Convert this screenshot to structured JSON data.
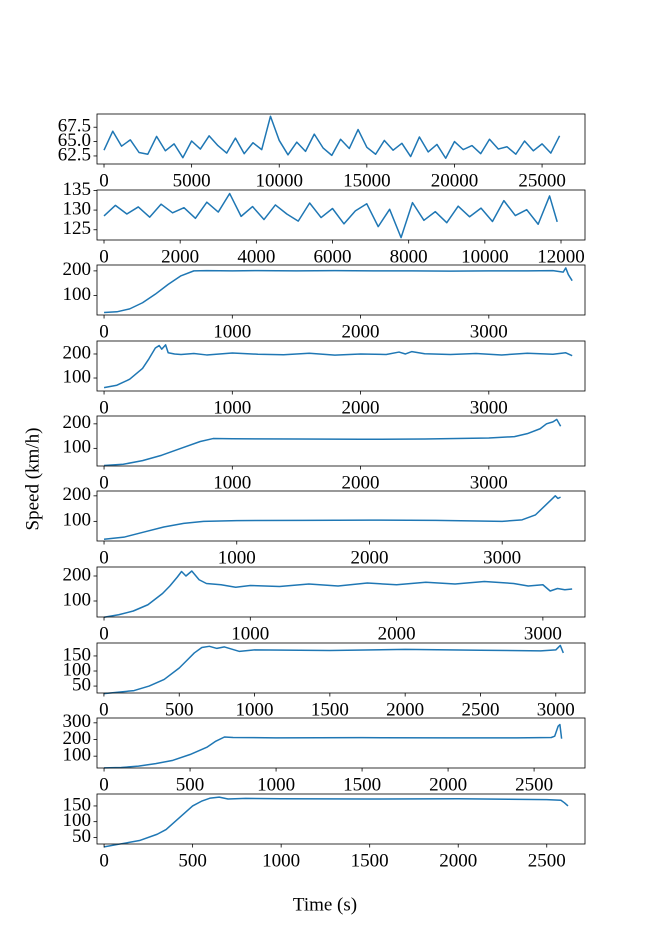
{
  "chart_data": [
    {
      "type": "line",
      "color": "#1f77b4",
      "x": [
        0,
        500,
        1000,
        1500,
        2000,
        2500,
        3000,
        3500,
        4000,
        4500,
        5000,
        5500,
        6000,
        6500,
        7000,
        7500,
        8000,
        8500,
        9000,
        9500,
        10000,
        10500,
        11000,
        11500,
        12000,
        12500,
        13000,
        13500,
        14000,
        14500,
        15000,
        15500,
        16000,
        16500,
        17000,
        17500,
        18000,
        18500,
        19000,
        19500,
        20000,
        20500,
        21000,
        21500,
        22000,
        22500,
        23000,
        23500,
        24000,
        24500,
        25000,
        25500,
        26000
      ],
      "values": [
        63.5,
        66.8,
        64.2,
        65.3,
        63.1,
        62.8,
        65.9,
        63.4,
        64.6,
        62.2,
        65.1,
        63.7,
        66.0,
        64.3,
        63.0,
        65.6,
        62.9,
        64.8,
        63.6,
        69.4,
        65.2,
        62.7,
        64.9,
        63.3,
        66.3,
        63.9,
        62.6,
        65.4,
        63.8,
        67.1,
        64.0,
        62.8,
        65.2,
        63.5,
        64.7,
        62.4,
        65.8,
        63.2,
        64.5,
        62.1,
        65.0,
        63.6,
        64.3,
        62.9,
        65.4,
        63.7,
        64.1,
        62.8,
        65.1,
        63.4,
        64.6,
        63.0,
        66.0
      ],
      "xlim": [
        -400,
        27450
      ],
      "ylim": [
        61.1,
        69.8
      ],
      "xticks": [
        0,
        5000,
        10000,
        15000,
        20000,
        25000
      ],
      "yticks": [
        62.5,
        {
          "value": 65,
          "label": "65.0"
        },
        67.5
      ]
    },
    {
      "type": "line",
      "color": "#1f77b4",
      "x": [
        0,
        300,
        600,
        900,
        1200,
        1500,
        1800,
        2100,
        2400,
        2700,
        3000,
        3300,
        3600,
        3900,
        4200,
        4500,
        4800,
        5100,
        5400,
        5700,
        6000,
        6300,
        6600,
        6900,
        7200,
        7500,
        7800,
        8100,
        8400,
        8700,
        9000,
        9300,
        9600,
        9900,
        10200,
        10500,
        10800,
        11100,
        11400,
        11700,
        11900
      ],
      "values": [
        128.5,
        131.2,
        129.0,
        130.8,
        128.2,
        131.5,
        129.3,
        130.6,
        127.9,
        132.0,
        129.5,
        134.2,
        128.4,
        130.9,
        127.6,
        131.3,
        129.0,
        127.2,
        131.8,
        128.1,
        130.4,
        126.5,
        129.8,
        131.6,
        125.8,
        130.2,
        123.0,
        131.9,
        127.4,
        129.6,
        126.8,
        131.0,
        128.3,
        130.5,
        127.1,
        132.4,
        128.6,
        130.1,
        126.4,
        133.6,
        127.0
      ],
      "xlim": [
        -184,
        12630
      ],
      "ylim": [
        122.4,
        135.1
      ],
      "xticks": [
        0,
        2000,
        4000,
        6000,
        8000,
        10000,
        12000
      ],
      "yticks": [
        125,
        130,
        135
      ]
    },
    {
      "type": "line",
      "color": "#1f77b4",
      "x": [
        0,
        100,
        200,
        300,
        400,
        500,
        600,
        700,
        800,
        1000,
        1200,
        1500,
        1800,
        2100,
        2400,
        2700,
        3000,
        3300,
        3500,
        3580,
        3600,
        3620,
        3650
      ],
      "values": [
        30,
        33,
        45,
        70,
        105,
        145,
        180,
        200,
        201,
        200,
        201,
        200,
        201,
        200,
        200,
        199,
        200,
        200,
        201,
        195,
        212,
        185,
        160
      ],
      "xlim": [
        -55,
        3750
      ],
      "ylim": [
        20,
        224
      ],
      "xticks": [
        0,
        1000,
        2000,
        3000
      ],
      "yticks": [
        100,
        200
      ]
    },
    {
      "type": "line",
      "color": "#1f77b4",
      "x": [
        0,
        100,
        200,
        300,
        350,
        400,
        430,
        450,
        480,
        500,
        550,
        600,
        700,
        800,
        1000,
        1200,
        1400,
        1600,
        1800,
        2000,
        2200,
        2300,
        2350,
        2400,
        2500,
        2700,
        2900,
        3100,
        3300,
        3500,
        3600,
        3650
      ],
      "values": [
        60,
        70,
        95,
        140,
        180,
        225,
        235,
        220,
        238,
        205,
        200,
        198,
        202,
        196,
        204,
        199,
        197,
        203,
        195,
        200,
        198,
        208,
        200,
        210,
        201,
        198,
        202,
        196,
        203,
        199,
        205,
        193
      ],
      "xlim": [
        -55,
        3750
      ],
      "ylim": [
        46,
        254
      ],
      "xticks": [
        0,
        1000,
        2000,
        3000
      ],
      "yticks": [
        100,
        200
      ]
    },
    {
      "type": "line",
      "color": "#1f77b4",
      "ylabel": "Speed (km/h)",
      "x": [
        0,
        150,
        300,
        450,
        600,
        750,
        850,
        1000,
        1500,
        2000,
        2500,
        3000,
        3200,
        3300,
        3400,
        3450,
        3500,
        3530,
        3560
      ],
      "values": [
        30,
        35,
        50,
        72,
        100,
        128,
        140,
        139,
        138,
        137,
        138,
        142,
        148,
        160,
        180,
        200,
        208,
        218,
        190
      ],
      "xlim": [
        -55,
        3750
      ],
      "ylim": [
        28,
        232
      ],
      "xticks": [
        0,
        1000,
        2000,
        3000
      ],
      "yticks": [
        100,
        200
      ]
    },
    {
      "type": "line",
      "color": "#1f77b4",
      "x": [
        0,
        150,
        300,
        450,
        600,
        750,
        1000,
        1500,
        2000,
        2500,
        3000,
        3150,
        3250,
        3320,
        3370,
        3400,
        3420,
        3440
      ],
      "values": [
        30,
        38,
        58,
        78,
        92,
        100,
        103,
        104,
        105,
        104,
        100,
        106,
        125,
        160,
        185,
        200,
        190,
        195
      ],
      "xlim": [
        -53,
        3624
      ],
      "ylim": [
        23,
        219
      ],
      "xticks": [
        0,
        1000,
        2000,
        3000
      ],
      "yticks": [
        100,
        200
      ]
    },
    {
      "type": "line",
      "color": "#1f77b4",
      "x": [
        0,
        100,
        200,
        300,
        400,
        450,
        500,
        530,
        560,
        600,
        650,
        700,
        800,
        900,
        1000,
        1200,
        1400,
        1600,
        1800,
        2000,
        2200,
        2400,
        2600,
        2800,
        2900,
        3000,
        3050,
        3100,
        3150,
        3200
      ],
      "values": [
        35,
        45,
        60,
        85,
        130,
        160,
        195,
        218,
        200,
        220,
        185,
        170,
        165,
        155,
        162,
        158,
        168,
        160,
        172,
        165,
        175,
        168,
        178,
        170,
        160,
        165,
        140,
        150,
        145,
        148
      ],
      "xlim": [
        -48,
        3288
      ],
      "ylim": [
        36,
        236
      ],
      "xticks": [
        0,
        1000,
        2000,
        3000
      ],
      "yticks": [
        100,
        200
      ]
    },
    {
      "type": "line",
      "color": "#1f77b4",
      "x": [
        0,
        100,
        200,
        300,
        400,
        500,
        550,
        600,
        650,
        700,
        750,
        800,
        900,
        1000,
        1500,
        2000,
        2500,
        2900,
        3000,
        3030,
        3050
      ],
      "values": [
        25,
        30,
        35,
        50,
        72,
        110,
        135,
        160,
        178,
        182,
        175,
        180,
        165,
        170,
        168,
        172,
        169,
        167,
        170,
        185,
        160
      ],
      "xlim": [
        -46,
        3194
      ],
      "ylim": [
        27,
        193
      ],
      "xticks": [
        0,
        500,
        1000,
        1500,
        2000,
        2500,
        3000
      ],
      "yticks": [
        50,
        100,
        150
      ]
    },
    {
      "type": "line",
      "color": "#1f77b4",
      "x": [
        0,
        100,
        200,
        300,
        400,
        500,
        600,
        650,
        700,
        750,
        1000,
        1500,
        2000,
        2400,
        2600,
        2620,
        2640,
        2650,
        2660
      ],
      "values": [
        30,
        32,
        40,
        55,
        75,
        110,
        155,
        190,
        215,
        212,
        210,
        211,
        210,
        210,
        212,
        220,
        280,
        290,
        205
      ],
      "xlim": [
        -41,
        2796
      ],
      "ylim": [
        29,
        329
      ],
      "xticks": [
        0,
        500,
        1000,
        1500,
        2000,
        2500
      ],
      "yticks": [
        100,
        200,
        300
      ]
    },
    {
      "type": "line",
      "color": "#1f77b4",
      "xlabel": "Time (s)",
      "x": [
        0,
        100,
        200,
        300,
        350,
        400,
        450,
        500,
        550,
        600,
        650,
        700,
        800,
        1000,
        1500,
        2000,
        2500,
        2580,
        2600,
        2620
      ],
      "values": [
        20,
        30,
        40,
        60,
        75,
        100,
        125,
        150,
        165,
        175,
        178,
        172,
        174,
        173,
        172,
        173,
        170,
        168,
        160,
        150
      ],
      "xlim": [
        -40,
        2716
      ],
      "ylim": [
        29,
        188
      ],
      "xticks": [
        0,
        500,
        1000,
        1500,
        2000,
        2500
      ],
      "yticks": [
        50,
        100,
        150
      ]
    }
  ]
}
